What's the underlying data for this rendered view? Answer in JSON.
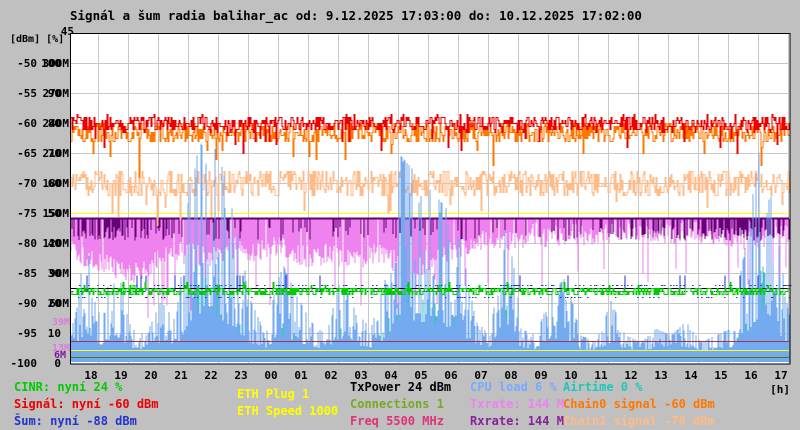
{
  "title": "Signál a šum radia balihar_ac od: 9.12.2025 17:03:00 do: 10.12.2025 17:02:00",
  "axis_header": {
    "top_value": "45",
    "units": "[dBm] [%]"
  },
  "axes": {
    "dbm": [
      "-50",
      "-55",
      "-60",
      "-65",
      "-70",
      "-75",
      "-80",
      "-85",
      "-90",
      "-95",
      "-100"
    ],
    "pct": [
      "100",
      "90",
      "80",
      "70",
      "60",
      "50",
      "40",
      "30",
      "20",
      "10",
      "0"
    ],
    "mbit": [
      "300M",
      "270M",
      "240M",
      "210M",
      "180M",
      "150M",
      "120M",
      "90M",
      "60M",
      "",
      ""
    ],
    "hours": [
      "18",
      "19",
      "20",
      "21",
      "22",
      "23",
      "00",
      "01",
      "02",
      "03",
      "04",
      "05",
      "06",
      "07",
      "08",
      "09",
      "10",
      "11",
      "12",
      "13",
      "14",
      "15",
      "16",
      "17"
    ],
    "hour_unit": "[h]"
  },
  "marker_labels": [
    {
      "text": "39M",
      "m": 39,
      "color": "#dd7add"
    },
    {
      "text": "13M",
      "m": 13,
      "color": "#dd7add"
    },
    {
      "text": "6M",
      "m": 6,
      "color": "#7a1a99"
    }
  ],
  "colors": {
    "page_bg": "#c0c0c0",
    "plot_bg": "#ffffff",
    "grid": "#c8c8c8",
    "border": "#000000",
    "cinr": "#00cc00",
    "signal": "#ee0000",
    "noise": "#2233cc",
    "eth": "#ffff00",
    "txpower": "#000000",
    "connections": "#77aa22",
    "freq": "#dd3377",
    "cpu": "#77aaff",
    "txrate": "#ee82ee",
    "rxrate": "#882299",
    "airtime": "#1fc8b8",
    "chain0": "#ff7700",
    "chain1": "#ffbb88"
  },
  "legend": {
    "items": [
      {
        "label": "CINR: nyní 24 %",
        "color_key": "cinr",
        "col": 1,
        "row": 0
      },
      {
        "label": "Signál: nyní -60 dBm",
        "color_key": "signal",
        "col": 1,
        "row": 1
      },
      {
        "label": "Šum: nyní -88 dBm",
        "color_key": "noise",
        "col": 1,
        "row": 2
      },
      {
        "label": "ETH Plug 1",
        "color_key": "eth",
        "col": 2,
        "row": 0
      },
      {
        "label": "ETH Speed 1000",
        "color_key": "eth",
        "col": 2,
        "row": 1
      },
      {
        "label": "TxPower 24 dBm",
        "color_key": "txpower",
        "col": 3,
        "row": 0
      },
      {
        "label": "Connections 1",
        "color_key": "connections",
        "col": 3,
        "row": 1
      },
      {
        "label": "Freq 5500 MHz",
        "color_key": "freq",
        "col": 3,
        "row": 2
      },
      {
        "label": "CPU load 6 %",
        "color_key": "cpu",
        "col": 4,
        "row": 0
      },
      {
        "label": "Txrate: 144 M",
        "color_key": "txrate",
        "col": 4,
        "row": 1
      },
      {
        "label": "Rxrate: 144 M",
        "color_key": "rxrate",
        "col": 4,
        "row": 2
      },
      {
        "label": "Airtime 0 %",
        "color_key": "airtime",
        "col": 5,
        "row": 0
      },
      {
        "label": "Chain0 signal -60 dBm",
        "color_key": "chain0",
        "col": 5,
        "row": 1
      },
      {
        "label": "Chain1 signal -70 dBm",
        "color_key": "chain1",
        "col": 5,
        "row": 2
      }
    ]
  },
  "chart_data": {
    "type": "line",
    "title": "Signál a šum radia balihar_ac od: 9.12.2025 17:03:00 do: 10.12.2025 17:02:00",
    "x_axis": {
      "label": "[h]",
      "start": "17:03",
      "end": "17:02",
      "hours_span": 24
    },
    "y_axes": [
      {
        "unit": "dBm",
        "range": [
          -100,
          -45
        ]
      },
      {
        "unit": "%",
        "range": [
          0,
          100
        ]
      },
      {
        "unit": "M",
        "range": [
          0,
          300
        ]
      }
    ],
    "sample_interval_min": 30,
    "series": [
      {
        "id": "signal",
        "name": "Signál",
        "unit": "dBm",
        "style": "steps",
        "color": "#ee0000",
        "current": -60,
        "baseline": -60,
        "noise_amp": 1.3,
        "deep_dip": 3
      },
      {
        "id": "chain0",
        "name": "Chain0 signal",
        "unit": "dBm",
        "style": "steps",
        "color": "#ff7700",
        "current": -60,
        "baseline": -61.5,
        "noise_amp": 1.7,
        "deep_dip": 4
      },
      {
        "id": "chain1",
        "name": "Chain1 signal",
        "unit": "dBm",
        "style": "steps",
        "color": "#ffbb88",
        "current": -70,
        "baseline": -70,
        "noise_amp": 2.2,
        "deep_dip": 4
      },
      {
        "id": "cinr",
        "name": "CINR",
        "unit": "%",
        "style": "steps",
        "color": "#00cc00",
        "current": 24,
        "baseline": 24,
        "noise_amp": 1.5
      },
      {
        "id": "noise",
        "name": "Šum",
        "unit": "dBm",
        "style": "dashes",
        "color": "#2233cc",
        "current": -88,
        "baseline": -88,
        "noise_amp": 1.0
      },
      {
        "id": "cpu",
        "name": "CPU load",
        "unit": "%",
        "style": "spikes",
        "color": "#74aaf0",
        "current": 6,
        "base": 3,
        "values": [
          8,
          35,
          15,
          30,
          10,
          8,
          18,
          12,
          55,
          68,
          58,
          40,
          18,
          8,
          30,
          20,
          12,
          8,
          25,
          15,
          10,
          25,
          60,
          55,
          50,
          45,
          35,
          12,
          8,
          55,
          10,
          8,
          20,
          25,
          8,
          6,
          18,
          8,
          6,
          10,
          8,
          12,
          6,
          8,
          10,
          35,
          65,
          40,
          10
        ]
      },
      {
        "id": "airtime",
        "name": "Airtime",
        "unit": "%",
        "style": "spikes",
        "color": "#2fc8b4",
        "current": 0,
        "base": 1,
        "values": [
          3,
          12,
          5,
          10,
          3,
          3,
          8,
          6,
          20,
          25,
          22,
          15,
          8,
          3,
          12,
          8,
          4,
          3,
          10,
          6,
          4,
          10,
          25,
          20,
          18,
          15,
          12,
          5,
          3,
          18,
          4,
          3,
          8,
          10,
          3,
          2,
          6,
          3,
          2,
          4,
          3,
          4,
          2,
          3,
          4,
          12,
          30,
          15,
          4
        ]
      },
      {
        "id": "txrate",
        "name": "Txrate",
        "unit": "M",
        "style": "area_top",
        "color": "#ee82ee",
        "current": 144,
        "max": 144,
        "values": [
          115,
          105,
          100,
          95,
          90,
          95,
          105,
          110,
          110,
          105,
          110,
          115,
          110,
          115,
          115,
          110,
          105,
          110,
          105,
          100,
          110,
          105,
          100,
          95,
          105,
          110,
          115,
          120,
          125,
          120,
          125,
          130,
          125,
          130,
          128,
          125,
          130,
          128,
          132,
          130,
          128,
          132,
          130,
          128,
          126,
          124,
          126,
          128,
          130
        ]
      },
      {
        "id": "rxrate",
        "name": "Rxrate",
        "unit": "M",
        "style": "rx_dips",
        "color": "#660077",
        "current": 144,
        "max": 144,
        "dip_depth": [
          8,
          22
        ],
        "values": [
          0.3,
          0.5,
          0.7,
          0.8,
          0.7,
          0.6,
          0.5,
          0.3,
          0.2,
          0.3,
          0.4,
          0.3,
          0.2,
          0.1,
          0.15,
          0.2,
          0.25,
          0.2,
          0.3,
          0.25,
          0.1,
          0.15,
          0.2,
          0.3,
          0.2,
          0.15,
          0.1,
          0.1,
          0.15,
          0.2,
          0.1,
          0.1,
          0.15,
          0.2,
          0.25,
          0.3,
          0.35,
          0.3,
          0.35,
          0.4,
          0.45,
          0.5,
          0.55,
          0.6,
          0.8,
          0.9,
          0.7,
          0.5,
          0.4
        ]
      }
    ],
    "reference_lines": [
      {
        "value": 150,
        "unit": "M",
        "color": "#ffff00",
        "layer": "mid"
      },
      {
        "value": 22,
        "unit": "M",
        "color": "#aa3344",
        "layer": "low"
      },
      {
        "value": 13,
        "unit": "M",
        "color": "#ffff00",
        "layer": "low"
      },
      {
        "value": 6,
        "unit": "M",
        "color": "#557700",
        "layer": "low"
      },
      {
        "value": -87.5,
        "unit": "dBm",
        "color": "#000000",
        "layer": "top"
      }
    ]
  }
}
